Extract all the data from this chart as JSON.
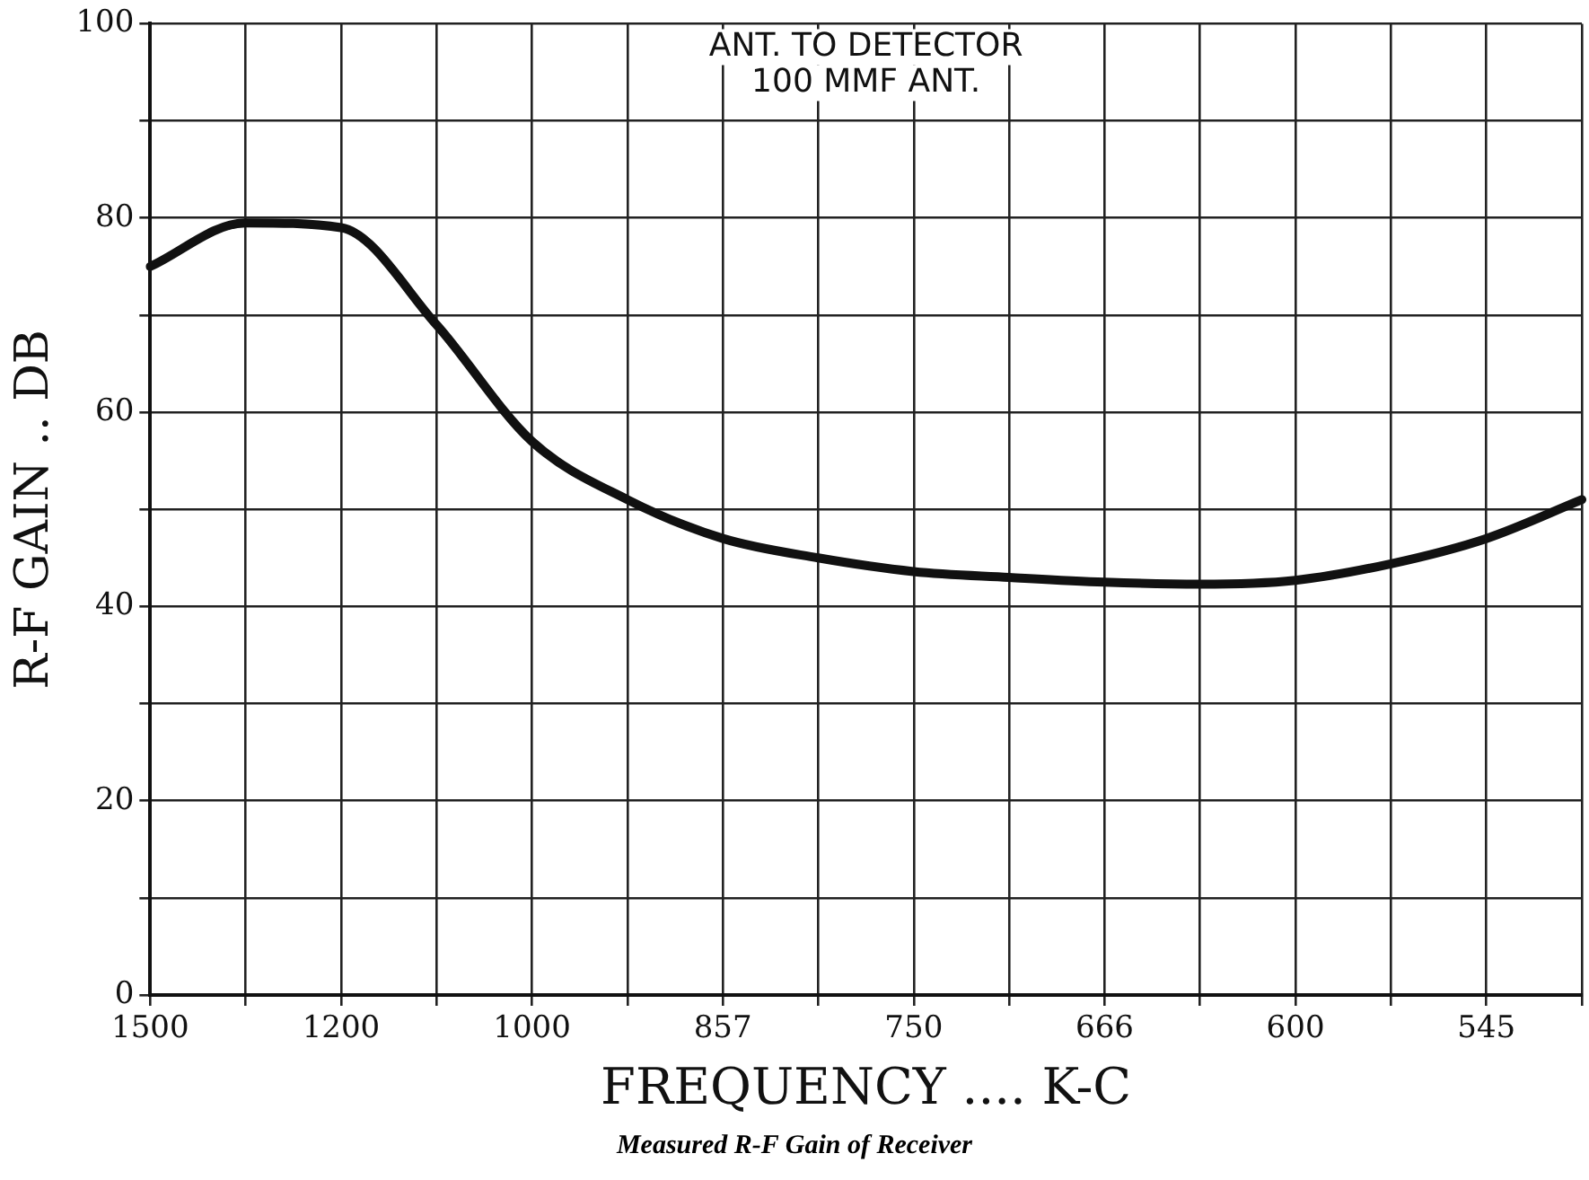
{
  "chart_data": {
    "type": "line",
    "xlabel": "FREQUENCY .... K-C",
    "ylabel": "R-F GAIN .. DB",
    "annotations": [
      "ANT. TO DETECTOR",
      "100 MMF ANT.",
      "Measured R-F Gain of Receiver"
    ],
    "categories": [
      "1500",
      null,
      "1200",
      null,
      "1000",
      null,
      "857",
      null,
      "750",
      null,
      "666",
      null,
      "600",
      null,
      "545",
      null
    ],
    "series": [
      {
        "color": "#111111",
        "values": [
          75,
          79.5,
          79,
          69,
          57,
          51,
          47,
          45,
          43.6,
          43,
          42.5,
          42.3,
          42.7,
          44.4,
          47,
          51
        ]
      }
    ],
    "ylim": [
      0,
      100
    ],
    "yticks": [
      0,
      {
        "value": 10,
        "label": null
      },
      20,
      {
        "value": 30,
        "label": null
      },
      40,
      {
        "value": 50,
        "label": null
      },
      60,
      {
        "value": 70,
        "label": null
      },
      80,
      {
        "value": 90,
        "label": null
      },
      100
    ],
    "grid": true,
    "legend": false,
    "marker": "none",
    "line_style": "solid"
  }
}
